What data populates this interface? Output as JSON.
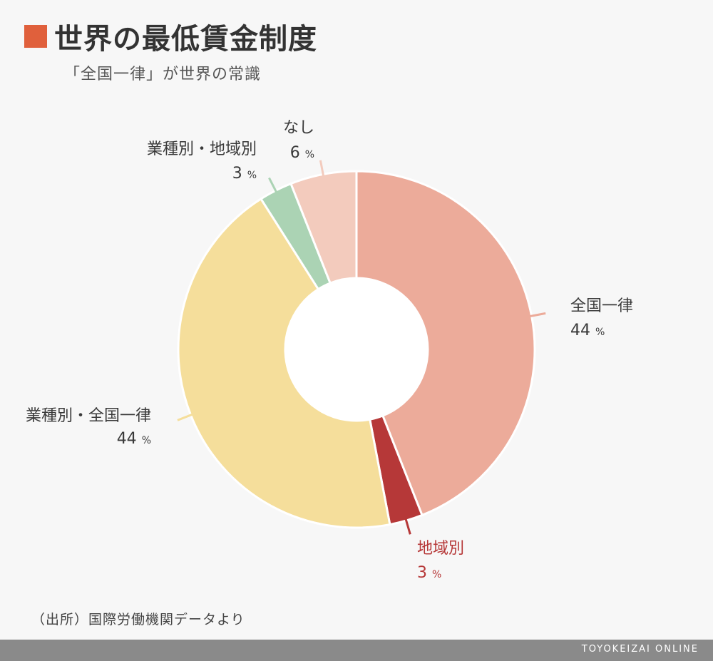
{
  "header": {
    "title": "世界の最低賃金制度",
    "subtitle": "「全国一律」が世界の常識",
    "title_square_color": "#e0603c"
  },
  "chart_data": {
    "type": "pie",
    "donut": true,
    "start_angle_deg": 0,
    "direction": "clockwise",
    "unit": "%",
    "slices": [
      {
        "label": "全国一律",
        "value": 44,
        "color": "#ecab9a",
        "label_color": "#3a3a3a"
      },
      {
        "label": "地域別",
        "value": 3,
        "color": "#b63838",
        "label_color": "#b63838"
      },
      {
        "label": "業種別・全国一律",
        "value": 44,
        "color": "#f5de9b",
        "label_color": "#3a3a3a"
      },
      {
        "label": "業種別・地域別",
        "value": 3,
        "color": "#abd3b4",
        "label_color": "#3a3a3a"
      },
      {
        "label": "なし",
        "value": 6,
        "color": "#f3cbbd",
        "label_color": "#3a3a3a"
      }
    ]
  },
  "source": "（出所）国際労働機関データより",
  "footer": {
    "brand": "TOYOKEIZAI ONLINE",
    "bar_color": "#8a8a8a"
  }
}
